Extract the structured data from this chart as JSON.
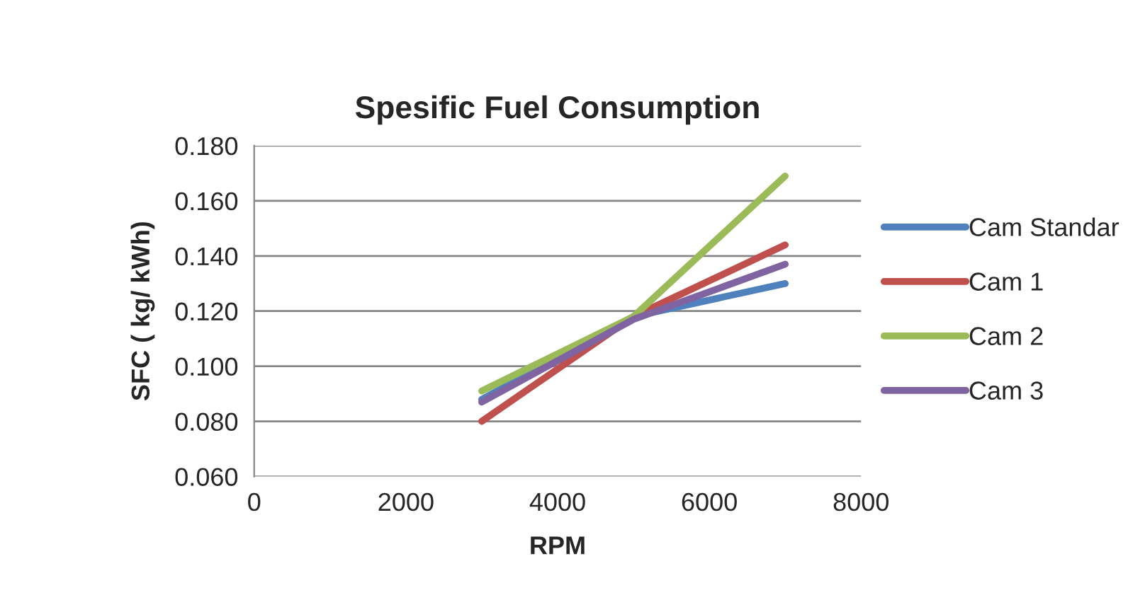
{
  "chart_data": {
    "type": "line",
    "title": "Spesific Fuel Consumption",
    "xlabel": "RPM",
    "ylabel": "SFC ( kg/ kWh)",
    "x": [
      3000,
      5000,
      7000
    ],
    "series": [
      {
        "name": "Cam Standar",
        "color": "#4f81bd",
        "values": [
          0.088,
          0.118,
          0.13
        ]
      },
      {
        "name": "Cam 1",
        "color": "#c0504d",
        "values": [
          0.08,
          0.118,
          0.144
        ]
      },
      {
        "name": "Cam 2",
        "color": "#9bbb59",
        "values": [
          0.091,
          0.118,
          0.169
        ]
      },
      {
        "name": "Cam 3",
        "color": "#8064a2",
        "values": [
          0.087,
          0.117,
          0.137
        ]
      }
    ],
    "xlim": [
      0,
      8000
    ],
    "xticks": [
      0,
      2000,
      4000,
      6000,
      8000
    ],
    "ylim": [
      0.06,
      0.18
    ],
    "yticks": [
      {
        "value": 0.06,
        "label": "0.060"
      },
      {
        "value": 0.08,
        "label": "0.080"
      },
      {
        "value": 0.1,
        "label": "0.100"
      },
      {
        "value": 0.12,
        "label": "0.120"
      },
      {
        "value": 0.14,
        "label": "0.140"
      },
      {
        "value": 0.16,
        "label": "0.160"
      },
      {
        "value": 0.18,
        "label": "0.180"
      }
    ],
    "grid": "y",
    "legend": "right",
    "marker": "none",
    "line_style": "solid"
  }
}
